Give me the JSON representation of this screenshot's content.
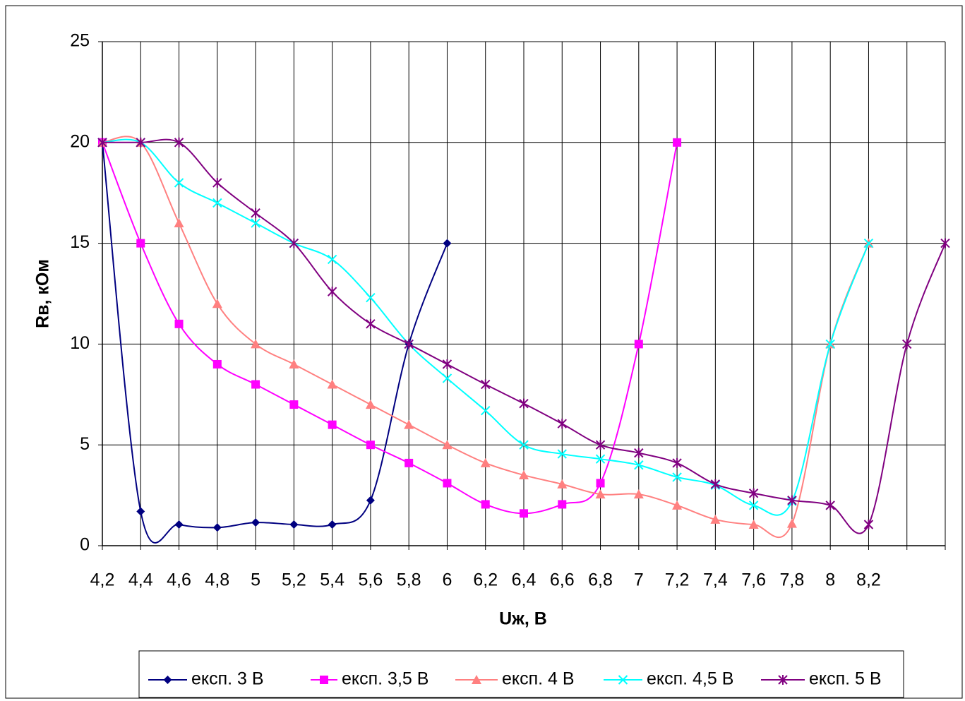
{
  "chart_data": {
    "type": "line",
    "x_label": "Uж, В",
    "y_label": "Rв, кОм",
    "categories": [
      "4,2",
      "4,4",
      "4,6",
      "4,8",
      "5",
      "5,2",
      "5,4",
      "5,6",
      "5,8",
      "6",
      "6,2",
      "6,4",
      "6,6",
      "6,8",
      "7",
      "7,2",
      "7,4",
      "7,6",
      "7,8",
      "8",
      "8,2",
      null,
      null
    ],
    "ylim": [
      0,
      25
    ],
    "yticks": [
      0,
      5,
      10,
      15,
      20,
      25
    ],
    "grid": true,
    "legend": "bottom",
    "series": [
      {
        "name": "експ. 3 В",
        "color": "#000080",
        "marker": "diamond",
        "values": [
          20,
          1.7,
          1.05,
          0.9,
          1.15,
          1.05,
          1.05,
          2.25,
          10,
          15,
          null,
          null,
          null,
          null,
          null,
          null,
          null,
          null,
          null,
          null,
          null,
          null,
          null
        ]
      },
      {
        "name": "експ. 3,5 В",
        "color": "#ff00ff",
        "marker": "square",
        "values": [
          20,
          15,
          11,
          9,
          8,
          7,
          6,
          5,
          4.1,
          3.1,
          2.05,
          1.6,
          2.05,
          3.1,
          10,
          20,
          null,
          null,
          null,
          null,
          null,
          null,
          null
        ]
      },
      {
        "name": "експ. 4 В",
        "color": "#ff8080",
        "marker": "triangle",
        "values": [
          20,
          20,
          16,
          12,
          10,
          9,
          8,
          7,
          6,
          5,
          4.1,
          3.5,
          3.05,
          2.55,
          2.55,
          2,
          1.3,
          1.05,
          1.1,
          10,
          15,
          null,
          null
        ]
      },
      {
        "name": "експ. 4,5 В",
        "color": "#00ffff",
        "marker": "x",
        "values": [
          20,
          20,
          18,
          17,
          16,
          15,
          14.2,
          12.3,
          10,
          8.3,
          6.7,
          5,
          4.55,
          4.3,
          4,
          3.4,
          3,
          2,
          2.2,
          10,
          15,
          null,
          null
        ]
      },
      {
        "name": "експ. 5 В",
        "color": "#800080",
        "marker": "star",
        "values": [
          20,
          20,
          20,
          18,
          16.5,
          15,
          12.6,
          11,
          10,
          9,
          8,
          7.05,
          6.05,
          5,
          4.6,
          4.1,
          3.05,
          2.6,
          2.25,
          2,
          1.05,
          10,
          15
        ]
      }
    ]
  }
}
